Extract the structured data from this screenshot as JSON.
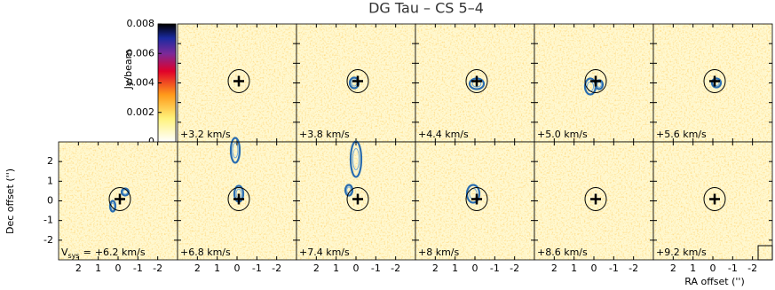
{
  "title": "DG Tau – CS 5–4",
  "colorbar": {
    "label": "Jy/beam",
    "lim": [
      0,
      0.008
    ],
    "ticks": [
      0,
      0.002,
      0.004,
      0.006,
      0.008
    ]
  },
  "axes": {
    "xlabel": "RA offset ('')",
    "ylabel": "Dec offset ('')",
    "xlim": [
      3,
      -3
    ],
    "ylim": [
      -3,
      3
    ],
    "xticks": [
      2,
      1,
      0,
      -1,
      -2
    ],
    "yticks": [
      -2,
      -1,
      0,
      1,
      2
    ]
  },
  "vsys": {
    "symbol": "V",
    "subscript": "sys",
    "sign": "="
  },
  "panels": [
    {
      "velocity": "+3.2 km/s"
    },
    {
      "velocity": "+3.8 km/s"
    },
    {
      "velocity": "+4.4 km/s"
    },
    {
      "velocity": "+5.0 km/s"
    },
    {
      "velocity": "+5.6 km/s"
    },
    {
      "velocity": "+6.2 km/s"
    },
    {
      "velocity": "+6.8 km/s"
    },
    {
      "velocity": "+7.4 km/s"
    },
    {
      "velocity": "+8 km/s"
    },
    {
      "velocity": "+8.6 km/s"
    },
    {
      "velocity": "+9.2 km/s"
    }
  ]
}
